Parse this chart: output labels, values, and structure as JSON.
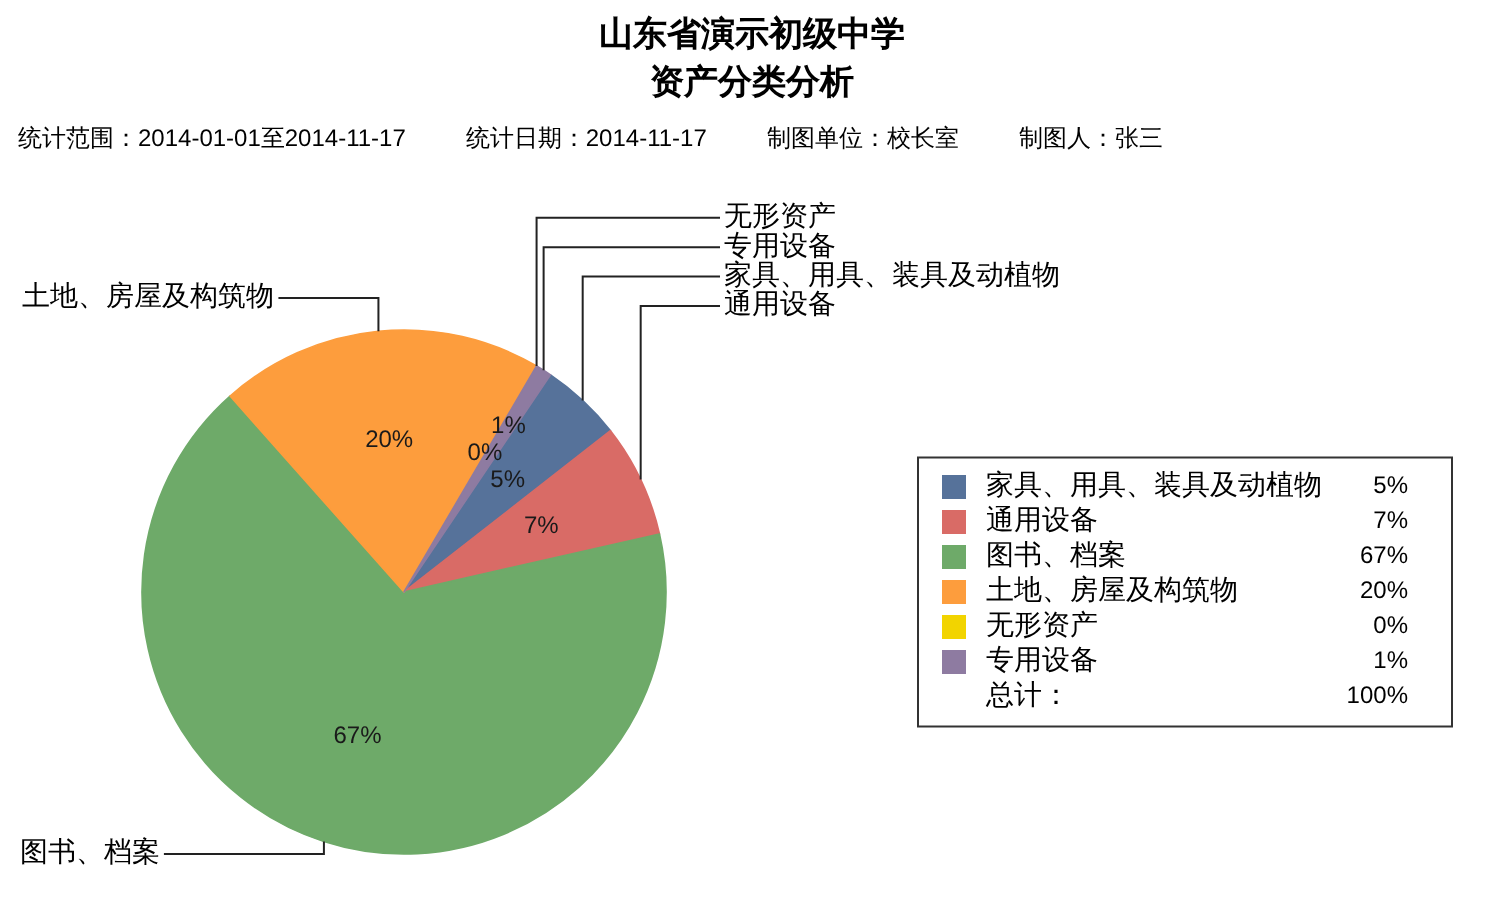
{
  "chart_data": {
    "type": "pie",
    "title": "山东省演示初级中学",
    "subtitle": "资产分类分析",
    "annotations": [
      "统计范围：2014-01-01至2014-11-17",
      "统计日期：2014-11-17",
      "制图单位：校长室",
      "制图人：张三",
      "总计："
    ],
    "categories": [
      "家具、用具、装具及动植物",
      "通用设备",
      "图书、档案",
      "土地、房屋及构筑物",
      "无形资产",
      "专用设备"
    ],
    "values": [
      5,
      7,
      67,
      20,
      0,
      1
    ],
    "colors": [
      "#56729a",
      "#d96b66",
      "#6eaa69",
      "#fd9d3d",
      "#f2d400",
      "#8e7ba1"
    ],
    "value_labels": [
      "5%",
      "7%",
      "67%",
      "20%",
      "0%",
      "1%"
    ],
    "totals": [
      "100%"
    ],
    "legend": "right"
  }
}
